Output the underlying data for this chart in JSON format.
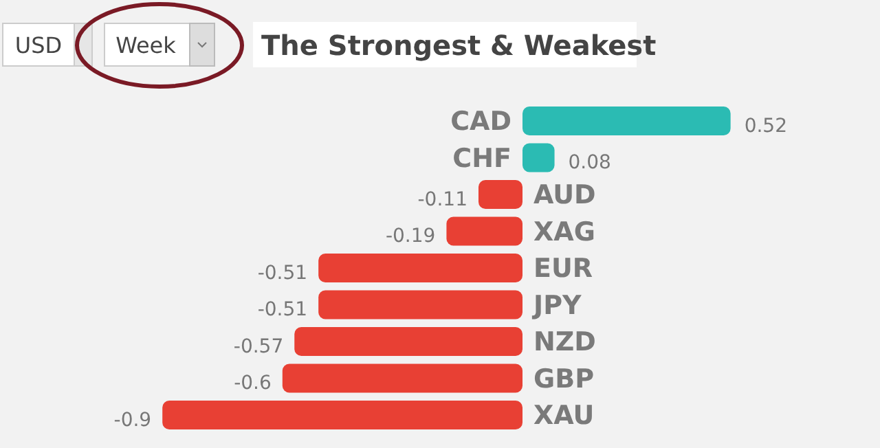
{
  "chart_data": {
    "type": "bar",
    "orientation": "horizontal",
    "title": "The Strongest & Weakest",
    "annotations": [
      "USD",
      "Week"
    ],
    "categories": [
      "CAD",
      "CHF",
      "AUD",
      "XAG",
      "EUR",
      "JPY",
      "NZD",
      "GBP",
      "XAU"
    ],
    "values": [
      0.52,
      0.08,
      -0.11,
      -0.19,
      -0.51,
      -0.51,
      -0.57,
      -0.6,
      -0.9
    ],
    "colors": [
      "#2bbbb3",
      "#2bbbb3",
      "#e84034",
      "#e84034",
      "#e84034",
      "#e84034",
      "#e84034",
      "#e84034",
      "#e84034"
    ],
    "data_labels": true
  }
}
